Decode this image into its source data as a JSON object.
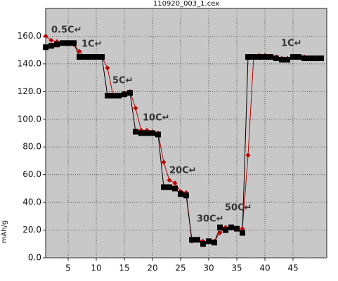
{
  "chart_data": {
    "type": "line",
    "title": "110920_003_1.cex",
    "y_label": "mAh/g",
    "x": [
      1,
      2,
      3,
      4,
      5,
      6,
      7,
      8,
      9,
      10,
      11,
      12,
      13,
      14,
      15,
      16,
      17,
      18,
      19,
      20,
      21,
      22,
      23,
      24,
      25,
      26,
      27,
      28,
      29,
      30,
      31,
      32,
      33,
      34,
      35,
      36,
      37,
      38,
      39,
      40,
      41,
      42,
      43,
      44,
      45,
      46,
      47,
      48,
      49,
      50
    ],
    "series": [
      {
        "color": "#c00000",
        "marker": "diamond",
        "values": [
          160,
          157,
          156,
          155,
          155,
          154,
          149,
          145,
          145,
          145,
          145,
          137,
          117,
          117,
          119,
          120,
          108,
          92,
          92,
          91,
          90,
          69,
          56,
          54,
          48,
          47,
          12,
          13,
          12,
          12,
          12,
          18,
          22,
          22,
          21,
          21,
          74,
          145,
          146,
          146,
          145,
          145,
          144,
          144,
          145,
          145,
          145,
          144,
          144,
          144
        ]
      },
      {
        "color": "#000000",
        "marker": "square",
        "values": [
          152,
          153,
          154,
          155,
          155,
          155,
          145,
          145,
          145,
          145,
          145,
          117,
          117,
          117,
          118,
          119,
          91,
          90,
          90,
          90,
          89,
          51,
          51,
          50,
          46,
          45,
          13,
          13,
          10,
          12,
          11,
          22,
          20,
          22,
          21,
          18,
          145,
          145,
          145,
          145,
          145,
          144,
          143,
          143,
          145,
          145,
          144,
          144,
          144,
          144
        ]
      }
    ],
    "annotations": [
      "0.5C↵",
      "1C↵",
      "5C↵",
      "10C↵",
      "20C↵",
      "30C↵",
      "50C↵",
      "1C↵"
    ],
    "xlim": [
      1,
      51
    ],
    "xticks": [
      5,
      10,
      15,
      20,
      25,
      30,
      35,
      40,
      45
    ],
    "ylim": [
      0,
      180
    ],
    "yticks": [
      {
        "value": 0,
        "label": "0.0"
      },
      {
        "value": 20,
        "label": "20.0"
      },
      {
        "value": 40,
        "label": "40.0"
      },
      {
        "value": 60,
        "label": "60.0"
      },
      {
        "value": 80,
        "label": "80.0"
      },
      {
        "value": 100,
        "label": "100.0"
      },
      {
        "value": 120,
        "label": "120.0"
      },
      {
        "value": 140,
        "label": "140.0"
      },
      {
        "value": 160,
        "label": "160.0"
      }
    ],
    "grid": true
  }
}
